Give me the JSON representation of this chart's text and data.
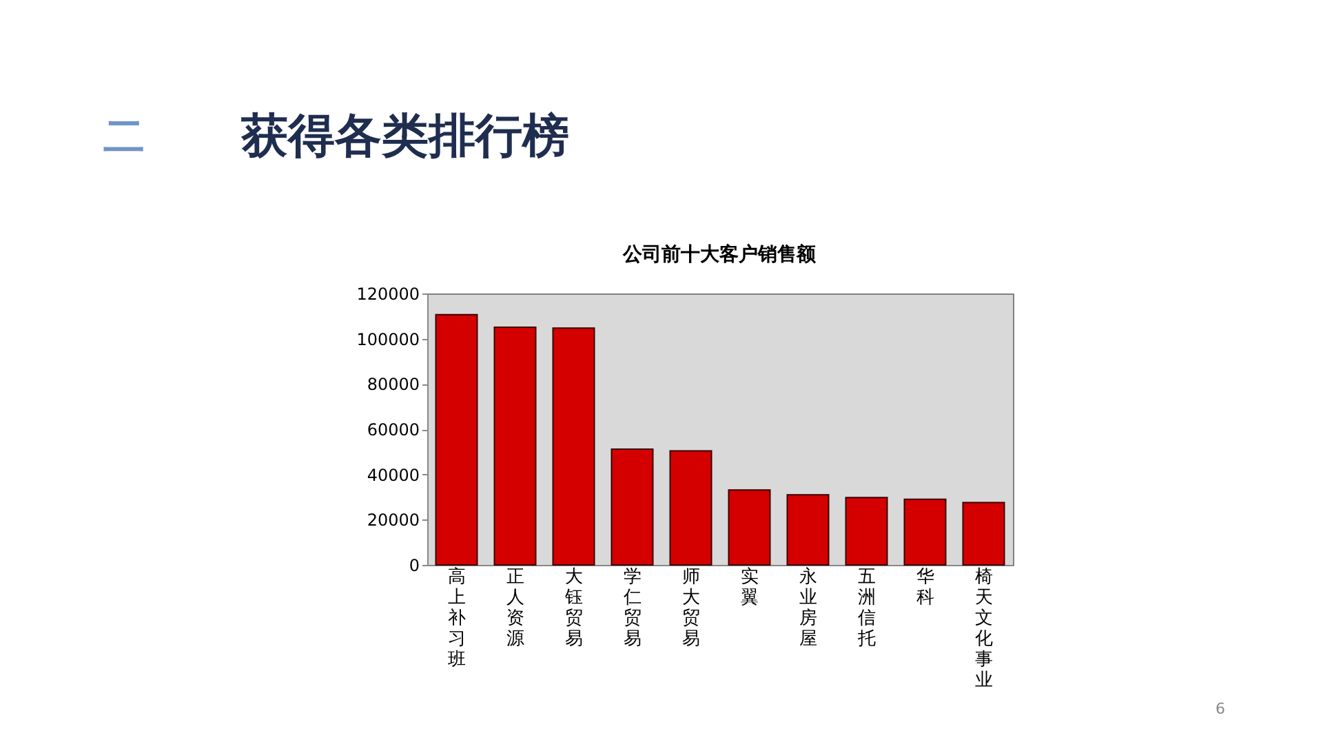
{
  "chart_data": {
    "type": "bar",
    "title": "公司前十大客户销售额",
    "categories": [
      "高上补习班",
      "正人资源",
      "大钰贸易",
      "学仁贸易",
      "师大贸易",
      "实翼",
      "永业房屋",
      "五洲信托",
      "华科",
      "椅天文化事业"
    ],
    "values": [
      110600,
      105100,
      104700,
      51200,
      50400,
      33100,
      31000,
      29800,
      29000,
      27600
    ],
    "color": "#d40000",
    "ylim": [
      0,
      120000
    ],
    "yticks": [
      0,
      20000,
      40000,
      60000,
      80000,
      100000,
      120000
    ],
    "grid": false,
    "annotations": [
      "二",
      "获得各类排行榜",
      "6"
    ]
  }
}
